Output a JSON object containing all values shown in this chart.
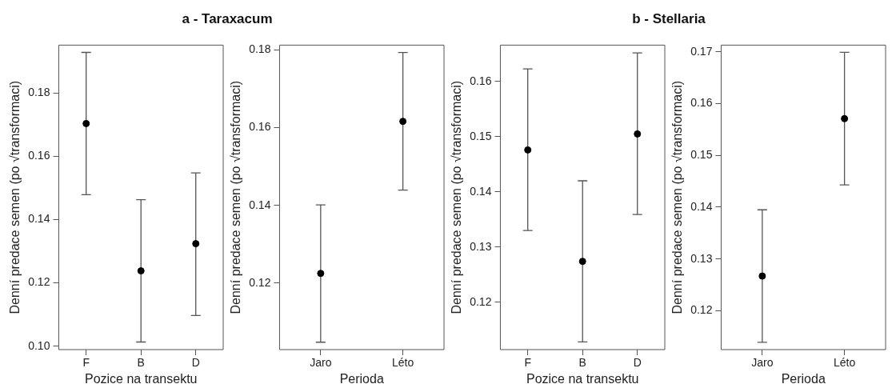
{
  "chart_data": [
    {
      "type": "scatter",
      "title": "a - Taraxacum",
      "categories": [
        "F",
        "B",
        "D"
      ],
      "values": [
        0.1704,
        0.1238,
        0.1324
      ],
      "errors": [
        [
          0.1479,
          0.1929
        ],
        [
          0.1013,
          0.1463
        ],
        [
          0.1097,
          0.1548
        ]
      ],
      "color": "#000000",
      "marker": "circle",
      "ylim": [
        0.0989,
        0.1952
      ],
      "yticks": [
        {
          "value": 0.1,
          "label": "0.10"
        },
        0.12,
        0.14,
        0.16,
        0.18
      ],
      "xlabel": "Pozice na transektu",
      "ylabel": "Denní predace semen (po √transformaci)",
      "grid": false,
      "legend": false
    },
    {
      "type": "scatter",
      "categories": [
        "Jaro",
        "Léto"
      ],
      "values": [
        0.1225,
        0.1616
      ],
      "errors": [
        [
          0.1048,
          0.1401
        ],
        [
          0.1439,
          0.1793
        ]
      ],
      "color": "#000000",
      "marker": "circle",
      "ylim": [
        0.1029,
        0.1812
      ],
      "yticks": [
        0.12,
        0.14,
        0.16,
        0.18
      ],
      "xlabel": "Perioda",
      "ylabel": "Denní predace semen (po √transformaci)",
      "grid": false,
      "legend": false
    },
    {
      "type": "scatter",
      "title": "b - Stellaria",
      "categories": [
        "F",
        "B",
        "D"
      ],
      "values": [
        0.1476,
        0.1274,
        0.1505
      ],
      "errors": [
        [
          0.133,
          0.1623
        ],
        [
          0.1128,
          0.142
        ],
        [
          0.1359,
          0.1652
        ]
      ],
      "color": "#000000",
      "marker": "circle",
      "ylim": [
        0.1114,
        0.1666
      ],
      "yticks": [
        0.12,
        0.13,
        0.14,
        0.15,
        0.16
      ],
      "xlabel": "Pozice na transektu",
      "ylabel": "Denní predace semen (po √transformaci)",
      "grid": false,
      "legend": false
    },
    {
      "type": "scatter",
      "categories": [
        "Jaro",
        "Léto"
      ],
      "values": [
        0.1267,
        0.1571
      ],
      "errors": [
        [
          0.1139,
          0.1395
        ],
        [
          0.1443,
          0.1699
        ]
      ],
      "color": "#000000",
      "marker": "circle",
      "ylim": [
        0.1125,
        0.1713
      ],
      "yticks": [
        0.12,
        0.13,
        0.14,
        0.15,
        0.16,
        0.17
      ],
      "xlabel": "Perioda",
      "ylabel": "Denní predace semen (po √transformaci)",
      "grid": false,
      "legend": false
    }
  ]
}
